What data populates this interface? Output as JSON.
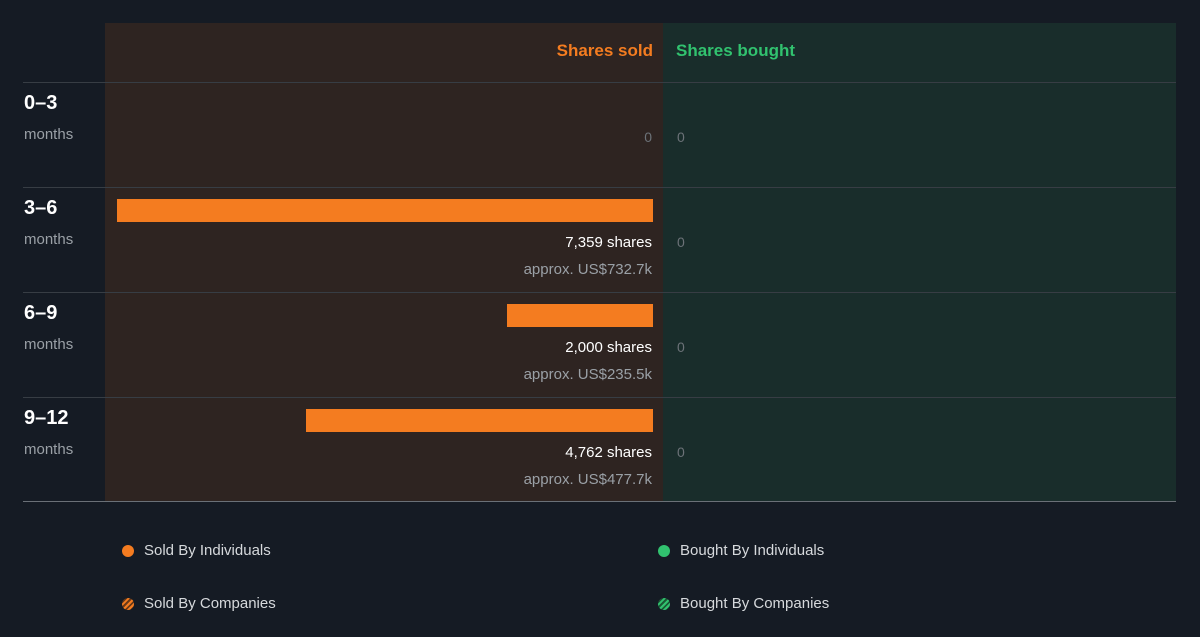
{
  "header": {
    "sold_label": "Shares sold",
    "bought_label": "Shares bought"
  },
  "colors": {
    "sold": "#f47c20",
    "bought": "#31c26f",
    "sold_panel": "#2e2421",
    "bought_panel": "#192d2b",
    "background": "#151b24"
  },
  "chart_data": {
    "type": "bar",
    "orientation": "horizontal",
    "categories": [
      "0–3 months",
      "3–6 months",
      "6–9 months",
      "9–12 months"
    ],
    "series": [
      {
        "name": "Shares sold",
        "values": [
          0,
          7359,
          2000,
          4762
        ]
      },
      {
        "name": "Shares bought",
        "values": [
          0,
          0,
          0,
          0
        ]
      }
    ]
  },
  "rows": [
    {
      "period": "0–3",
      "unit": "months",
      "sold_zero": "0",
      "bought": "0"
    },
    {
      "period": "3–6",
      "unit": "months",
      "sold_shares": "7,359 shares",
      "sold_value": "approx. US$732.7k",
      "bought": "0"
    },
    {
      "period": "6–9",
      "unit": "months",
      "sold_shares": "2,000 shares",
      "sold_value": "approx. US$235.5k",
      "bought": "0"
    },
    {
      "period": "9–12",
      "unit": "months",
      "sold_shares": "4,762 shares",
      "sold_value": "approx. US$477.7k",
      "bought": "0"
    }
  ],
  "legend": {
    "sold_individuals": "Sold By Individuals",
    "sold_companies": "Sold By Companies",
    "bought_individuals": "Bought By Individuals",
    "bought_companies": "Bought By Companies"
  }
}
